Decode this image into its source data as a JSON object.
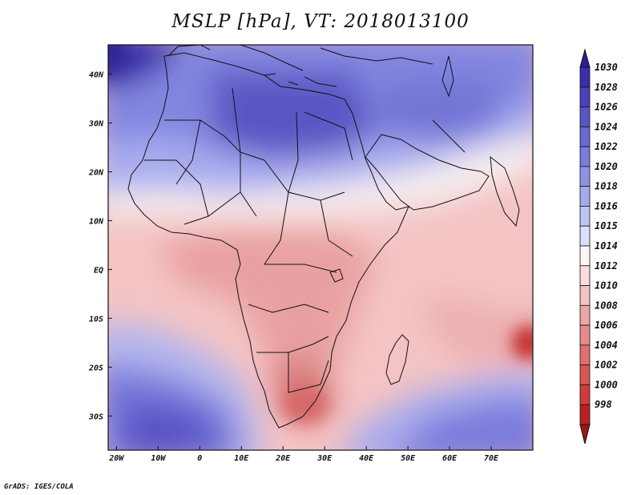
{
  "title": "MSLP [hPa], VT: 2018013100",
  "footer": "GrADS: IGES/COLA",
  "map": {
    "lon_range": [
      -22,
      80
    ],
    "lat_range": [
      -37,
      46
    ],
    "x_ticks": [
      {
        "lon": -20,
        "label": "20W"
      },
      {
        "lon": -10,
        "label": "10W"
      },
      {
        "lon": 0,
        "label": "0"
      },
      {
        "lon": 10,
        "label": "10E"
      },
      {
        "lon": 20,
        "label": "20E"
      },
      {
        "lon": 30,
        "label": "30E"
      },
      {
        "lon": 40,
        "label": "40E"
      },
      {
        "lon": 50,
        "label": "50E"
      },
      {
        "lon": 60,
        "label": "60E"
      },
      {
        "lon": 70,
        "label": "70E"
      }
    ],
    "y_ticks": [
      {
        "lat": 40,
        "label": "40N"
      },
      {
        "lat": 30,
        "label": "30N"
      },
      {
        "lat": 20,
        "label": "20N"
      },
      {
        "lat": 10,
        "label": "10N"
      },
      {
        "lat": 0,
        "label": "EQ"
      },
      {
        "lat": -10,
        "label": "10S"
      },
      {
        "lat": -20,
        "label": "20S"
      },
      {
        "lat": -30,
        "label": "30S"
      }
    ]
  },
  "colorbar": {
    "levels": [
      "1030",
      "1028",
      "1026",
      "1024",
      "1022",
      "1020",
      "1018",
      "1016",
      "1015",
      "1014",
      "1012",
      "1010",
      "1008",
      "1006",
      "1004",
      "1002",
      "1000",
      "998"
    ],
    "colors": [
      "#3a2fa8",
      "#4a42b8",
      "#5a55c6",
      "#6a68d2",
      "#7b7cdc",
      "#8f92e4",
      "#a6aaec",
      "#c0c4f3",
      "#dcdff9",
      "#fbf6f6",
      "#f9dcdc",
      "#f5c2c2",
      "#eea6a6",
      "#e68b8b",
      "#df7070",
      "#d85555",
      "#cf3c3c",
      "#b52222"
    ]
  },
  "pressure_centers": [
    {
      "name": "n-africa-high",
      "lon": 8,
      "lat": 32,
      "hpa": 1028
    },
    {
      "name": "arabia-high",
      "lon": 42,
      "lat": 27,
      "hpa": 1022
    },
    {
      "name": "sw-high",
      "lon": -5,
      "lat": -30,
      "hpa": 1026
    },
    {
      "name": "se-high",
      "lon": 55,
      "lat": -35,
      "hpa": 1022
    },
    {
      "name": "cyclone",
      "lon": 80,
      "lat": -15,
      "hpa": 998
    },
    {
      "name": "kalahari-low",
      "lon": 27,
      "lat": -27,
      "hpa": 1006
    }
  ],
  "icons": {
    "arrow_up": "colorbar-max-arrow-icon",
    "arrow_down": "colorbar-min-arrow-icon"
  }
}
